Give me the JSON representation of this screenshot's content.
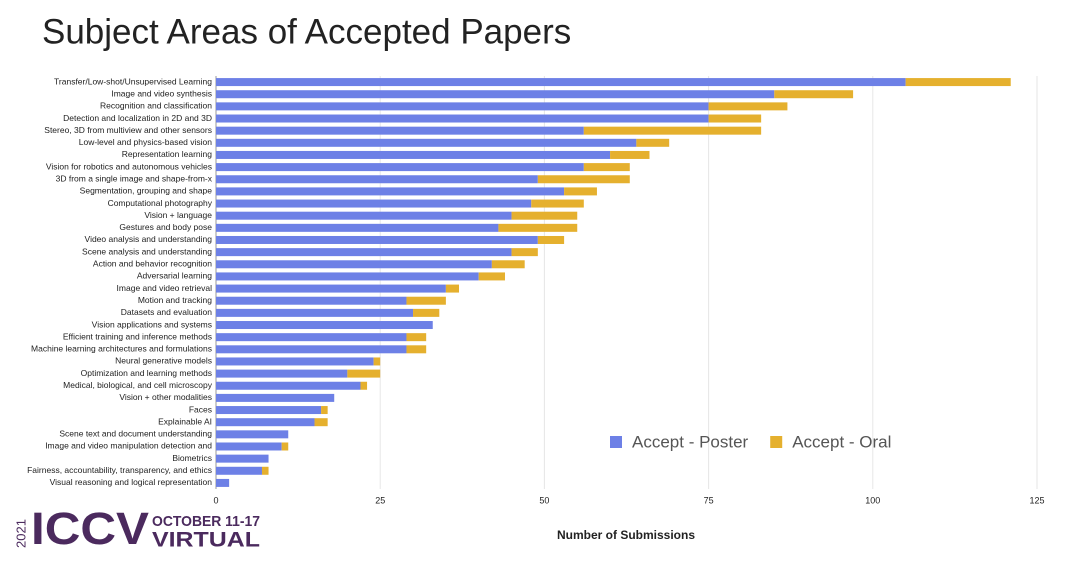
{
  "chart_data": {
    "type": "stacked-barh",
    "title": "Subject Areas of Accepted Papers",
    "xlabel": "Number of Submissions",
    "categories": [
      "Transfer/Low-shot/Unsupervised Learning",
      "Image and video synthesis",
      "Recognition and classification",
      "Detection and localization in 2D and 3D",
      "Stereo, 3D from multiview and other sensors",
      "Low-level and physics-based vision",
      "Representation learning",
      "Vision for robotics and autonomous vehicles",
      "3D from a single image and shape-from-x",
      "Segmentation, grouping and shape",
      "Computational photography",
      "Vision + language",
      "Gestures and body pose",
      "Video analysis and understanding",
      "Scene analysis and understanding",
      "Action and behavior recognition",
      "Adversarial learning",
      "Image and video retrieval",
      "Motion and tracking",
      "Datasets and evaluation",
      "Vision applications and systems",
      "Efficient training and inference methods",
      "Machine learning architectures and formulations",
      "Neural generative models",
      "Optimization and learning methods",
      "Medical, biological, and cell microscopy",
      "Vision + other modalities",
      "Faces",
      "Explainable AI",
      "Scene text and document understanding",
      "Image and video manipulation detection and",
      "Biometrics",
      "Fairness, accountability, transparency, and ethics",
      "Visual reasoning and logical representation"
    ],
    "series": [
      {
        "name": "Accept - Poster",
        "color": "#6d80e6",
        "values": [
          105,
          85,
          75,
          75,
          56,
          64,
          60,
          56,
          49,
          53,
          48,
          45,
          43,
          49,
          45,
          42,
          40,
          35,
          29,
          30,
          33,
          29,
          29,
          24,
          20,
          22,
          18,
          16,
          15,
          11,
          10,
          8,
          7,
          2
        ]
      },
      {
        "name": "Accept - Oral",
        "color": "#e5b02e",
        "values": [
          16,
          12,
          12,
          8,
          27,
          5,
          6,
          7,
          14,
          5,
          8,
          10,
          12,
          4,
          4,
          5,
          4,
          2,
          6,
          4,
          0,
          3,
          3,
          1,
          5,
          1,
          0,
          1,
          2,
          0,
          1,
          0,
          1,
          0
        ]
      }
    ],
    "xlim": [
      0,
      125
    ],
    "xticks": [
      0,
      25,
      50,
      75,
      100,
      125
    ],
    "grid": true,
    "legend": "lower right"
  },
  "logo": {
    "year": "2021",
    "name": "ICCV",
    "dates": "OCTOBER 11-17",
    "mode": "VIRTUAL"
  }
}
